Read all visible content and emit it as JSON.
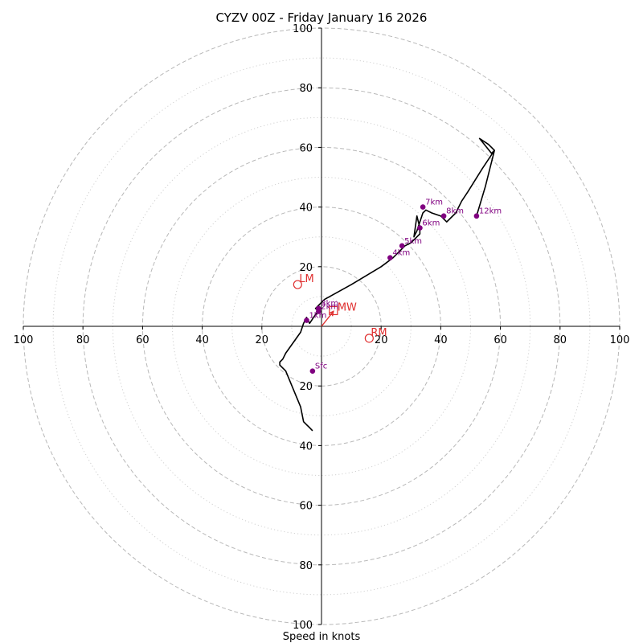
{
  "chart_data": {
    "type": "hodograph",
    "title": "CYZV 00Z - Friday January 16 2026",
    "xlabel": "Speed in knots",
    "axis_range": [
      -100,
      100
    ],
    "ring_values": [
      20,
      40,
      60,
      80,
      100
    ],
    "minor_ring_values": [
      10,
      30,
      50,
      70,
      90
    ],
    "x_tick_labels": [
      "100",
      "80",
      "60",
      "40",
      "20",
      "20",
      "40",
      "60",
      "80",
      "100"
    ],
    "x_tick_values": [
      -100,
      -80,
      -60,
      -40,
      -20,
      20,
      40,
      60,
      80,
      100
    ],
    "y_tick_labels": [
      "100",
      "80",
      "60",
      "40",
      "20",
      "20",
      "40",
      "60",
      "80",
      "100"
    ],
    "y_tick_values": [
      100,
      80,
      60,
      40,
      20,
      -20,
      -40,
      -60,
      -80,
      -100
    ],
    "wind_trace": [
      [
        -3,
        -35
      ],
      [
        -4,
        -34
      ],
      [
        -6,
        -32
      ],
      [
        -7,
        -27
      ],
      [
        -12,
        -15
      ],
      [
        -14,
        -13
      ],
      [
        -14,
        -12
      ],
      [
        -13,
        -11
      ],
      [
        -12,
        -9
      ],
      [
        -7,
        -2
      ],
      [
        -6,
        1
      ],
      [
        -5,
        3
      ],
      [
        -4,
        1
      ],
      [
        -2,
        4
      ],
      [
        -1,
        5
      ],
      [
        -2,
        6
      ],
      [
        -1,
        7
      ],
      [
        1,
        9
      ],
      [
        10,
        14
      ],
      [
        20,
        20
      ],
      [
        24,
        23
      ],
      [
        28,
        27
      ],
      [
        30,
        28
      ],
      [
        32,
        30
      ],
      [
        33,
        31
      ],
      [
        33,
        33
      ],
      [
        32,
        37
      ],
      [
        31,
        30
      ],
      [
        32,
        32
      ],
      [
        34,
        38
      ],
      [
        35,
        39
      ],
      [
        37,
        38
      ],
      [
        40,
        37
      ],
      [
        41,
        36
      ],
      [
        42,
        35
      ],
      [
        45,
        38
      ],
      [
        47,
        42
      ],
      [
        49,
        45
      ],
      [
        54,
        53
      ],
      [
        58,
        59
      ],
      [
        56,
        61
      ],
      [
        53,
        63
      ],
      [
        57,
        58
      ],
      [
        58,
        59
      ],
      [
        55,
        47
      ],
      [
        52,
        37
      ]
    ],
    "height_markers": [
      {
        "label": "Sfc",
        "u": -3,
        "v": -15
      },
      {
        "label": "1km",
        "u": -5,
        "v": 2
      },
      {
        "label": "2km",
        "u": -1,
        "v": 5
      },
      {
        "label": "3km",
        "u": -1,
        "v": 6
      },
      {
        "label": "4km",
        "u": 23,
        "v": 23
      },
      {
        "label": "5km",
        "u": 27,
        "v": 27
      },
      {
        "label": "6km",
        "u": 33,
        "v": 33
      },
      {
        "label": "7km",
        "u": 34,
        "v": 40
      },
      {
        "label": "8km",
        "u": 41,
        "v": 37
      },
      {
        "label": "12km",
        "u": 52,
        "v": 37
      }
    ],
    "storm_motions": [
      {
        "label": "LM",
        "u": -8,
        "v": 14,
        "marker": "circle"
      },
      {
        "label": "RM",
        "u": 16,
        "v": -4,
        "marker": "circle"
      },
      {
        "label": "MW",
        "u": 4,
        "v": 5,
        "marker": "square"
      }
    ],
    "mean_vector": {
      "u": 4,
      "v": 5
    },
    "colors": {
      "trace": "#000000",
      "markers": "#800080",
      "storm": "#e03030",
      "ring_major": "#b8b8b8",
      "ring_minor": "#d0d0d0"
    }
  }
}
